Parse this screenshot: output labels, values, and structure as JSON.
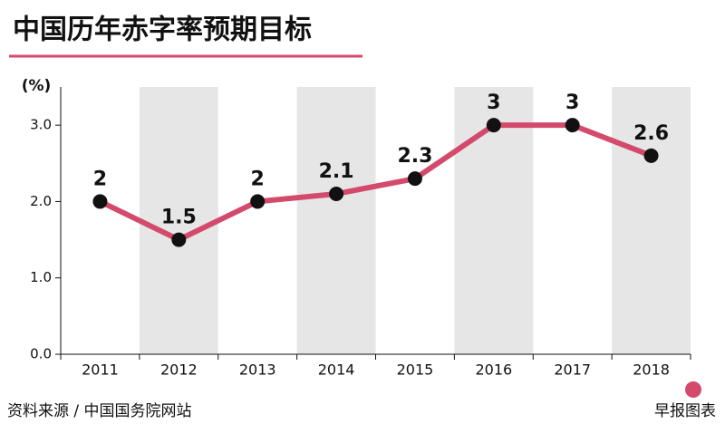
{
  "chart_data": {
    "type": "line",
    "title": "中国历年赤字率预期目标",
    "y_label": "(%)",
    "categories": [
      "2011",
      "2012",
      "2013",
      "2014",
      "2015",
      "2016",
      "2017",
      "2018"
    ],
    "series": [
      {
        "name": "赤字率",
        "color": "#d44a6c",
        "values": [
          2,
          1.5,
          2,
          2.1,
          2.3,
          3,
          3,
          2.6
        ]
      }
    ],
    "ylim": [
      0,
      3.5
    ],
    "yticks": [
      {
        "value": 0,
        "label": "0.0"
      },
      {
        "value": 1,
        "label": "1.0"
      },
      {
        "value": 2,
        "label": "2.0"
      },
      {
        "value": 3,
        "label": "3.0"
      }
    ],
    "source": "资料来源 / 中国国务院网站",
    "credit": "早报图表"
  }
}
